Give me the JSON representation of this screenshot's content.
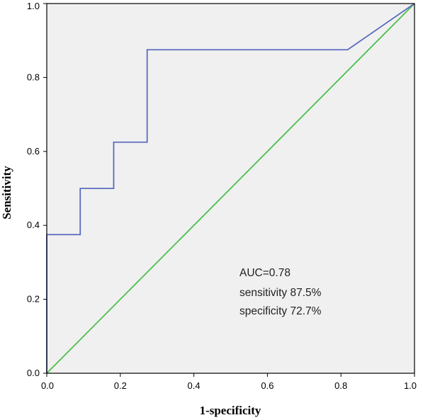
{
  "chart_data": {
    "type": "line",
    "title": "",
    "xlabel": "1-specificity",
    "ylabel": "Sensitivity",
    "xlim": [
      0.0,
      1.0
    ],
    "ylim": [
      0.0,
      1.0
    ],
    "x_ticks": [
      "0.0",
      "0.2",
      "0.4",
      "0.6",
      "0.8",
      "1.0"
    ],
    "y_ticks": [
      "0.0",
      "0.2",
      "0.4",
      "0.6",
      "0.8",
      "1.0"
    ],
    "grid": false,
    "legend": "none",
    "plot_background": "#f0f0f0",
    "series": [
      {
        "color": "#5b6bbf",
        "points": [
          [
            0.0,
            0.0
          ],
          [
            0.0,
            0.375
          ],
          [
            0.091,
            0.375
          ],
          [
            0.091,
            0.5
          ],
          [
            0.182,
            0.5
          ],
          [
            0.182,
            0.625
          ],
          [
            0.273,
            0.625
          ],
          [
            0.273,
            0.875
          ],
          [
            0.818,
            0.875
          ],
          [
            1.0,
            1.0
          ]
        ]
      },
      {
        "color": "#4cc04c",
        "points": [
          [
            0.0,
            0.0
          ],
          [
            1.0,
            1.0
          ]
        ]
      }
    ],
    "annotations": [
      "AUC=0.78",
      "sensitivity 87.5%",
      "specificity 72.7%"
    ]
  }
}
